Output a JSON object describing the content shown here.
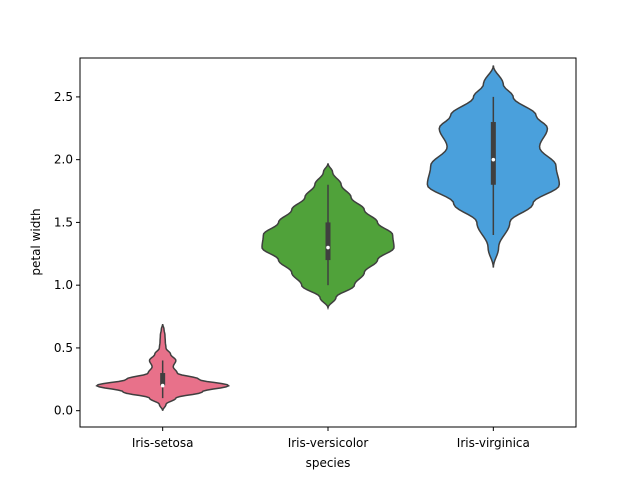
{
  "chart_data": {
    "type": "violin",
    "xlabel": "species",
    "ylabel": "petal width",
    "ylim": [
      -0.13,
      2.81
    ],
    "yticks": [
      "0.0",
      "0.5",
      "1.0",
      "1.5",
      "2.0",
      "2.5"
    ],
    "grid": false,
    "series": [
      {
        "name": "Iris-setosa",
        "color": "#e8718a",
        "min": 0.1,
        "q1": 0.2,
        "median": 0.2,
        "q3": 0.3,
        "max": 0.4,
        "kde_range": [
          0.0,
          0.69
        ],
        "density": [
          [
            0.0,
            0.0
          ],
          [
            0.05,
            0.05
          ],
          [
            0.1,
            0.2
          ],
          [
            0.15,
            0.6
          ],
          [
            0.2,
            1.0
          ],
          [
            0.25,
            0.55
          ],
          [
            0.3,
            0.22
          ],
          [
            0.35,
            0.16
          ],
          [
            0.4,
            0.2
          ],
          [
            0.45,
            0.12
          ],
          [
            0.5,
            0.05
          ],
          [
            0.55,
            0.04
          ],
          [
            0.6,
            0.035
          ],
          [
            0.65,
            0.02
          ],
          [
            0.69,
            0.0
          ]
        ]
      },
      {
        "name": "Iris-versicolor",
        "color": "#50a23a",
        "min": 1.0,
        "q1": 1.2,
        "median": 1.3,
        "q3": 1.5,
        "max": 1.8,
        "kde_range": [
          0.82,
          1.97
        ],
        "density": [
          [
            0.82,
            0.0
          ],
          [
            0.9,
            0.12
          ],
          [
            1.0,
            0.4
          ],
          [
            1.1,
            0.55
          ],
          [
            1.2,
            0.75
          ],
          [
            1.3,
            1.0
          ],
          [
            1.4,
            0.98
          ],
          [
            1.5,
            0.75
          ],
          [
            1.6,
            0.55
          ],
          [
            1.7,
            0.35
          ],
          [
            1.8,
            0.2
          ],
          [
            1.9,
            0.07
          ],
          [
            1.97,
            0.0
          ]
        ]
      },
      {
        "name": "Iris-virginica",
        "color": "#4aa0dc",
        "min": 1.4,
        "q1": 1.8,
        "median": 2.0,
        "q3": 2.3,
        "max": 2.5,
        "kde_range": [
          1.14,
          2.75
        ],
        "density": [
          [
            1.14,
            0.0
          ],
          [
            1.3,
            0.08
          ],
          [
            1.5,
            0.25
          ],
          [
            1.65,
            0.6
          ],
          [
            1.8,
            1.0
          ],
          [
            1.95,
            0.95
          ],
          [
            2.1,
            0.7
          ],
          [
            2.25,
            0.82
          ],
          [
            2.35,
            0.65
          ],
          [
            2.5,
            0.3
          ],
          [
            2.6,
            0.15
          ],
          [
            2.75,
            0.0
          ]
        ]
      }
    ]
  }
}
